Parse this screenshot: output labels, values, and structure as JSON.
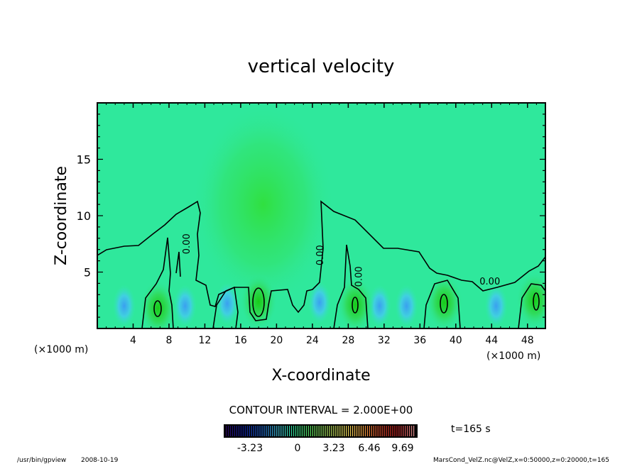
{
  "chart_data": {
    "type": "heatmap",
    "subtype": "filled-contour",
    "title": "vertical velocity",
    "xlabel": "X-coordinate",
    "ylabel": "Z-coordinate",
    "x_unit": "(×1000 m)",
    "y_unit": "(×1000 m)",
    "xlim": [
      0,
      50
    ],
    "ylim": [
      0,
      20
    ],
    "xticks": [
      4,
      8,
      12,
      16,
      20,
      24,
      28,
      32,
      36,
      40,
      44,
      48
    ],
    "yticks": [
      5,
      10,
      15
    ],
    "contour_interval": "CONTOUR INTERVAL = 2.000E+00",
    "contour_label": "0.00",
    "contour_label_positions": [
      {
        "x": 10.3,
        "z": 7.5
      },
      {
        "x": 25.2,
        "z": 6.5
      },
      {
        "x": 29.5,
        "z": 4.6
      },
      {
        "x": 43.8,
        "z": 3.9
      }
    ],
    "positive_cores": [
      {
        "x": 6.8,
        "z": 1.8
      },
      {
        "x": 18.0,
        "z": 2.4
      },
      {
        "x": 28.8,
        "z": 2.1
      },
      {
        "x": 38.7,
        "z": 2.3
      },
      {
        "x": 48.8,
        "z": 2.5
      }
    ],
    "negative_cores": [
      {
        "x": 3.0,
        "z": 2.0
      },
      {
        "x": 9.8,
        "z": 2.0
      },
      {
        "x": 14.5,
        "z": 2.2
      },
      {
        "x": 24.8,
        "z": 2.3
      },
      {
        "x": 31.5,
        "z": 2.0
      },
      {
        "x": 34.5,
        "z": 2.0
      },
      {
        "x": 44.5,
        "z": 2.0
      }
    ],
    "plume": {
      "x": 18.5,
      "z": 11,
      "width": 8,
      "height": 12
    },
    "colorbar": {
      "ticks": [
        "-3.23",
        "0",
        "3.23",
        "6.46",
        "9.69"
      ],
      "colors": [
        "#2a0a5e",
        "#1020a0",
        "#2060d0",
        "#40c0e0",
        "#30d890",
        "#60e060",
        "#b0e060",
        "#f0e060",
        "#f0a040",
        "#e05030",
        "#c02020",
        "#e09090"
      ]
    },
    "time_label": "t=165 s"
  },
  "footer": {
    "program": "/usr/bin/gpview",
    "date": "2008-10-19",
    "source": "MarsCond_VelZ.nc@VelZ,x=0:50000,z=0:20000,t=165"
  },
  "colors": {
    "background_field": "#2fe89c",
    "positive": "#20d020",
    "negative": "#40b8f0"
  }
}
